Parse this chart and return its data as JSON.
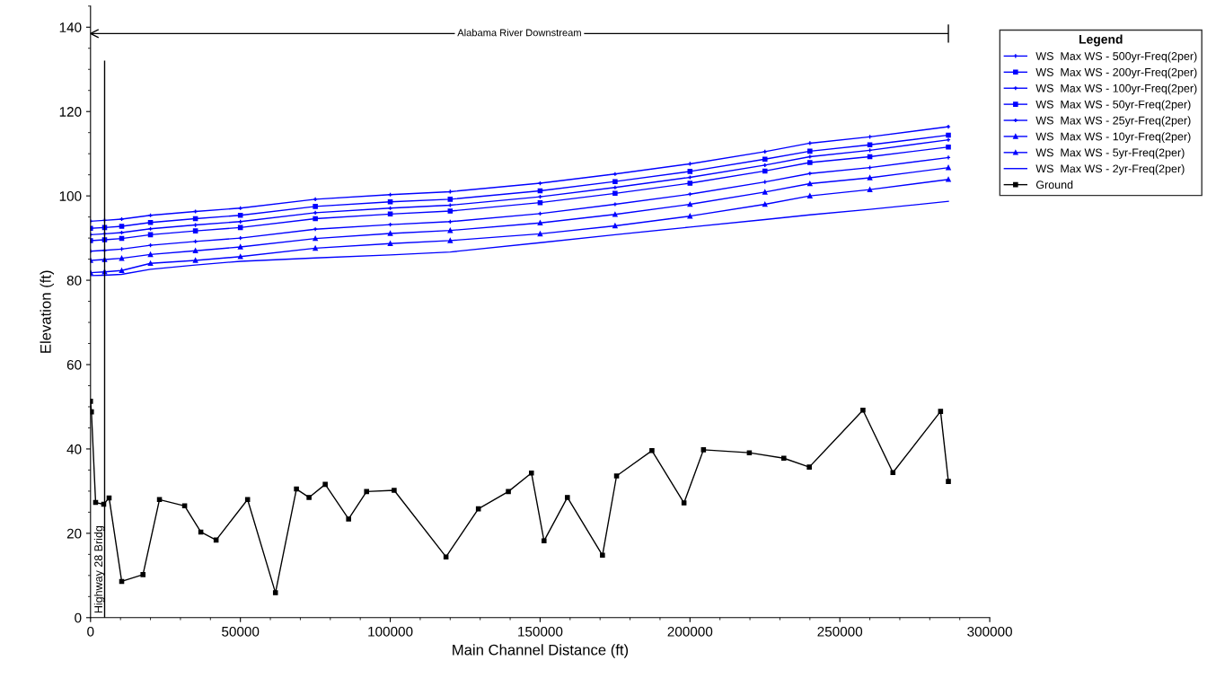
{
  "chart_data": {
    "type": "line",
    "xlabel": "Main Channel Distance (ft)",
    "ylabel": "Elevation (ft)",
    "legend_title": "Legend",
    "legend": "right",
    "grid": false,
    "xlim": [
      0,
      300000
    ],
    "xticks": [
      0,
      50000,
      100000,
      150000,
      200000,
      250000,
      300000
    ],
    "ylim": [
      0,
      145
    ],
    "yticks": [
      0,
      20,
      40,
      60,
      80,
      100,
      120,
      140
    ],
    "x": [
      0,
      4700,
      10400,
      20000,
      35000,
      50000,
      75000,
      100000,
      120000,
      150000,
      175000,
      200000,
      225000,
      240000,
      260000,
      286200
    ],
    "series": [
      {
        "name": "WS  Max WS - 500yr-Freq(2per)",
        "color": "#0000ff",
        "marker": "cross",
        "values": [
          94.0,
          94.2,
          94.5,
          95.4,
          96.3,
          97.1,
          99.2,
          100.3,
          101.0,
          103.0,
          105.2,
          107.6,
          110.5,
          112.5,
          114.0,
          116.4
        ]
      },
      {
        "name": "WS  Max WS - 200yr-Freq(2per)",
        "color": "#0000ff",
        "marker": "square",
        "values": [
          92.3,
          92.5,
          92.8,
          93.7,
          94.6,
          95.4,
          97.5,
          98.6,
          99.2,
          101.2,
          103.4,
          105.8,
          108.7,
          110.6,
          112.1,
          114.4
        ]
      },
      {
        "name": "WS  Max WS - 100yr-Freq(2per)",
        "color": "#0000ff",
        "marker": "cross",
        "values": [
          90.8,
          91.0,
          91.3,
          92.2,
          93.1,
          93.9,
          96.0,
          97.1,
          97.8,
          99.8,
          102.0,
          104.4,
          107.3,
          109.3,
          110.8,
          113.3
        ]
      },
      {
        "name": "WS  Max WS - 50yr-Freq(2per)",
        "color": "#0000ff",
        "marker": "square",
        "values": [
          89.4,
          89.6,
          89.9,
          90.8,
          91.7,
          92.5,
          94.6,
          95.7,
          96.4,
          98.4,
          100.6,
          103.0,
          105.9,
          107.9,
          109.3,
          111.6
        ]
      },
      {
        "name": "WS  Max WS - 25yr-Freq(2per)",
        "color": "#0000ff",
        "marker": "cross",
        "values": [
          86.9,
          87.1,
          87.4,
          88.3,
          89.2,
          90.0,
          92.1,
          93.2,
          93.9,
          95.8,
          98.0,
          100.4,
          103.3,
          105.3,
          106.7,
          109.1
        ]
      },
      {
        "name": "WS  Max WS - 10yr-Freq(2per)",
        "color": "#0000ff",
        "marker": "triangle",
        "values": [
          84.7,
          84.9,
          85.2,
          86.1,
          87.0,
          87.9,
          89.9,
          91.1,
          91.8,
          93.6,
          95.6,
          98.0,
          100.9,
          102.9,
          104.3,
          106.7
        ]
      },
      {
        "name": "WS  Max WS - 5yr-Freq(2per)",
        "color": "#0000ff",
        "marker": "triangle",
        "values": [
          81.8,
          82.0,
          82.3,
          84.0,
          84.7,
          85.6,
          87.6,
          88.7,
          89.4,
          91.0,
          92.9,
          95.2,
          98.0,
          100.0,
          101.5,
          103.9
        ]
      },
      {
        "name": "WS  Max WS - 2yr-Freq(2per)",
        "color": "#0000ff",
        "marker": "none",
        "values": [
          81.1,
          81.2,
          81.4,
          82.6,
          83.6,
          84.5,
          85.3,
          86.0,
          86.7,
          88.9,
          90.8,
          92.6,
          94.4,
          95.5,
          96.8,
          98.7
        ]
      },
      {
        "name": "Ground",
        "color": "#000000",
        "marker": "square",
        "x": [
          0,
          300,
          1700,
          4400,
          6200,
          10400,
          17500,
          23000,
          31400,
          36800,
          41900,
          52400,
          61700,
          68700,
          72900,
          78300,
          86100,
          92100,
          101300,
          118600,
          129400,
          139400,
          147100,
          151300,
          159100,
          170800,
          175500,
          187300,
          198000,
          204500,
          219800,
          231300,
          239800,
          257700,
          267700,
          283600,
          286200
        ],
        "values": [
          51.3,
          48.8,
          27.3,
          26.9,
          28.4,
          8.6,
          10.2,
          28.0,
          26.5,
          20.3,
          18.4,
          28.0,
          5.9,
          30.5,
          28.5,
          31.6,
          23.4,
          29.9,
          30.2,
          14.4,
          25.8,
          29.9,
          34.3,
          18.2,
          28.5,
          14.8,
          33.6,
          39.6,
          27.2,
          39.8,
          39.1,
          37.8,
          35.7,
          49.2,
          34.4,
          48.9,
          32.3
        ]
      }
    ],
    "ref_lines": [
      {
        "axis": "x",
        "value": 4700,
        "label": "Highway 28 Bridg",
        "color": "#000000"
      },
      {
        "axis": "y",
        "value": 138.5,
        "label": "Alabama River Downstream",
        "color": "#000000"
      }
    ]
  }
}
